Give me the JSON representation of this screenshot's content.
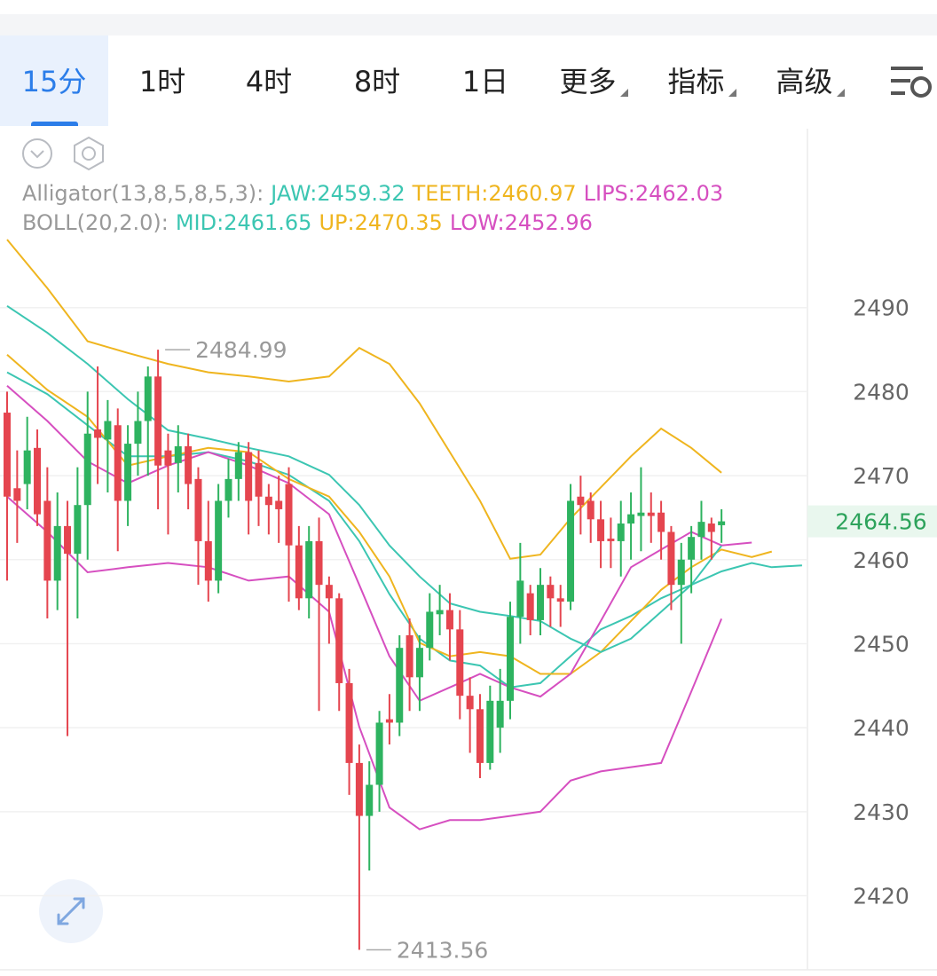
{
  "tabs": [
    "15分",
    "1时",
    "4时",
    "8时",
    "1日",
    "更多",
    "指标",
    "高级"
  ],
  "chart_data": {
    "type": "candlestick",
    "up_color": "#2eb360",
    "down_color": "#e5454f",
    "open": [
      2477.5,
      2468.5,
      2469,
      2473.3,
      2467,
      2457.5,
      2464,
      2460.7,
      2466.5,
      2475.5,
      2474.3,
      2476,
      2467,
      2473.8,
      2476.5,
      2481.8,
      2473,
      2471.5,
      2473.5,
      2469.6,
      2462.2,
      2457.5,
      2467,
      2469.6,
      2472.8,
      2471.5,
      2467.5,
      2467,
      2469,
      2461.7,
      2455.4,
      2462.2,
      2457,
      2455.4,
      2445.3,
      2435.8,
      2429.5,
      2433.2,
      2441,
      2440.6,
      2451,
      2446,
      2449.5,
      2453.5,
      2454,
      2451.7,
      2443.8,
      2442.2,
      2435.8,
      2440,
      2443.2,
      2453.2,
      2456,
      2452.8,
      2457,
      2455.4,
      2455,
      2467.5,
      2467,
      2464.8,
      2462.5,
      2462.2,
      2464.3,
      2465.2,
      2465.6,
      2465.6,
      2463.3,
      2457,
      2460,
      2462.7,
      2464.3,
      2464.1
    ],
    "high": [
      2480,
      2473,
      2477,
      2475.5,
      2471,
      2468,
      2467,
      2471,
      2480,
      2483,
      2479,
      2478,
      2476,
      2480,
      2483,
      2484.99,
      2475,
      2476,
      2475,
      2471,
      2467,
      2469,
      2472,
      2474,
      2474,
      2473,
      2469,
      2470,
      2471,
      2464,
      2464,
      2465,
      2458,
      2456,
      2447,
      2438,
      2436,
      2442,
      2444,
      2451,
      2453,
      2451,
      2456,
      2457,
      2456,
      2454,
      2446,
      2444,
      2445,
      2447,
      2455,
      2462,
      2457,
      2459,
      2458,
      2457,
      2469,
      2470,
      2468,
      2467,
      2465,
      2467,
      2468,
      2471,
      2468,
      2467,
      2464,
      2462,
      2464,
      2467,
      2465,
      2466
    ],
    "low": [
      2457.5,
      2462,
      2466,
      2464,
      2453,
      2454,
      2439,
      2453,
      2460,
      2469,
      2468,
      2461,
      2464,
      2470,
      2470,
      2466,
      2463,
      2468,
      2466,
      2457,
      2455,
      2456,
      2465,
      2467,
      2463,
      2464,
      2463,
      2462,
      2455,
      2454,
      2453,
      2442,
      2450,
      2442,
      2432,
      2413.56,
      2423,
      2430,
      2438,
      2439,
      2442,
      2442,
      2448,
      2451,
      2448,
      2441,
      2437,
      2434,
      2435,
      2437,
      2441,
      2450,
      2451,
      2451,
      2452,
      2452,
      2454,
      2463,
      2462,
      2459,
      2459,
      2458,
      2460,
      2461,
      2462,
      2460,
      2454,
      2450,
      2456,
      2460,
      2460,
      2462
    ],
    "close": [
      2467.5,
      2467,
      2473,
      2465.4,
      2457.5,
      2464,
      2460.7,
      2466.5,
      2475,
      2474.5,
      2476.5,
      2467,
      2473.8,
      2476.5,
      2481.8,
      2471.2,
      2471.2,
      2473.5,
      2469,
      2462.2,
      2457.5,
      2467,
      2469.6,
      2472.8,
      2467,
      2467.5,
      2466.5,
      2466,
      2461.7,
      2455.4,
      2462.2,
      2457,
      2455.4,
      2445.3,
      2435.8,
      2429.5,
      2433.2,
      2440.6,
      2440.6,
      2449.5,
      2446,
      2449.5,
      2453.8,
      2454,
      2451.7,
      2443.8,
      2442.2,
      2435.8,
      2443.2,
      2443.2,
      2453.2,
      2457.5,
      2452.8,
      2457,
      2455.4,
      2455,
      2467,
      2466.5,
      2464.8,
      2462.2,
      2462.2,
      2464.3,
      2465.4,
      2465.6,
      2465.2,
      2463.3,
      2457,
      2460,
      2462.7,
      2464.5,
      2463.3,
      2464.56
    ],
    "indicators": [
      {
        "label": "Alligator(13,8,5,8,5,3):",
        "series": [
          {
            "name": "JAW:",
            "color": "#3cc6b2",
            "x": [
              0,
              4,
              8,
              12,
              16,
              20,
              24,
              28,
              32,
              35,
              38,
              41,
              44,
              47,
              50,
              53,
              56,
              59,
              62,
              65,
              68,
              71,
              74,
              76,
              79
            ],
            "values": [
              2482.3,
              2479.7,
              2476,
              2472.3,
              2472.3,
              2472.8,
              2471.7,
              2470.1,
              2467,
              2462.2,
              2455.9,
              2450.6,
              2448,
              2447.4,
              2444.8,
              2445.3,
              2448.5,
              2451.7,
              2453.3,
              2455.4,
              2457,
              2458.6,
              2459.6,
              2459.1,
              2459.32
            ]
          },
          {
            "name": "TEETH:",
            "color": "#efb51f",
            "x": [
              0,
              4,
              8,
              12,
              16,
              20,
              24,
              28,
              32,
              35,
              38,
              41,
              44,
              47,
              50,
              53,
              56,
              59,
              62,
              65,
              68,
              71,
              74,
              76
            ],
            "values": [
              2484.4,
              2480.2,
              2477,
              2471.2,
              2472.3,
              2473.3,
              2472.8,
              2469.6,
              2467.5,
              2463.3,
              2458,
              2450.1,
              2448.5,
              2449,
              2448.5,
              2446.4,
              2446.4,
              2449,
              2452.7,
              2456.4,
              2459.1,
              2461.2,
              2460.3,
              2460.97
            ]
          },
          {
            "name": "LIPS:",
            "color": "#d64fc0",
            "x": [
              0,
              4,
              8,
              12,
              16,
              20,
              24,
              28,
              32,
              35,
              38,
              41,
              44,
              47,
              50,
              53,
              56,
              59,
              62,
              65,
              68,
              71,
              74
            ],
            "values": [
              2480.7,
              2476.5,
              2471.7,
              2469.1,
              2471.2,
              2472.8,
              2471.2,
              2469.1,
              2465.4,
              2457,
              2448.5,
              2443.2,
              2444.8,
              2446.4,
              2444.8,
              2443.7,
              2446.4,
              2452.7,
              2459.1,
              2461.2,
              2463.3,
              2461.7,
              2462.03
            ]
          }
        ]
      },
      {
        "label": "BOLL(20,2.0):",
        "series": [
          {
            "name": "MID:",
            "color": "#3cc6b2",
            "x": [
              0,
              4,
              8,
              12,
              16,
              20,
              24,
              28,
              32,
              35,
              38,
              41,
              44,
              47,
              50,
              53,
              56,
              59,
              62,
              65,
              68,
              71
            ],
            "values": [
              2490.2,
              2487,
              2483.3,
              2479.1,
              2475.4,
              2474.4,
              2473.3,
              2472.3,
              2470.1,
              2466.5,
              2461.7,
              2458,
              2454.8,
              2453.8,
              2453.3,
              2452.7,
              2450.6,
              2449,
              2450.6,
              2453.8,
              2457,
              2461.65
            ]
          },
          {
            "name": "UP:",
            "color": "#efb51f",
            "x": [
              0,
              4,
              8,
              12,
              16,
              20,
              24,
              28,
              32,
              35,
              38,
              41,
              44,
              47,
              50,
              53,
              56,
              59,
              62,
              65,
              68,
              71
            ],
            "values": [
              2498.1,
              2492.3,
              2486,
              2484.6,
              2483.3,
              2482.3,
              2481.8,
              2481.2,
              2481.8,
              2485.2,
              2483.3,
              2478.6,
              2472.8,
              2467,
              2460.1,
              2460.6,
              2464.9,
              2468.6,
              2472.3,
              2475.6,
              2473.3,
              2470.35
            ]
          },
          {
            "name": "LOW:",
            "color": "#d64fc0",
            "x": [
              0,
              4,
              8,
              12,
              16,
              20,
              24,
              28,
              32,
              35,
              38,
              41,
              44,
              47,
              50,
              53,
              56,
              59,
              62,
              65,
              68,
              71
            ],
            "values": [
              2467.5,
              2463.3,
              2458.5,
              2459.1,
              2459.6,
              2459.1,
              2457.5,
              2458,
              2453.8,
              2440.1,
              2430.5,
              2427.9,
              2429,
              2429,
              2429.5,
              2430,
              2433.7,
              2434.8,
              2435.3,
              2435.8,
              2444.3,
              2452.96
            ]
          }
        ]
      }
    ],
    "ylim": [
      2411.5,
      2511.3
    ],
    "yticks": [
      2420,
      2430,
      2440,
      2450,
      2460,
      2470,
      2480,
      2490
    ],
    "grid": true
  }
}
